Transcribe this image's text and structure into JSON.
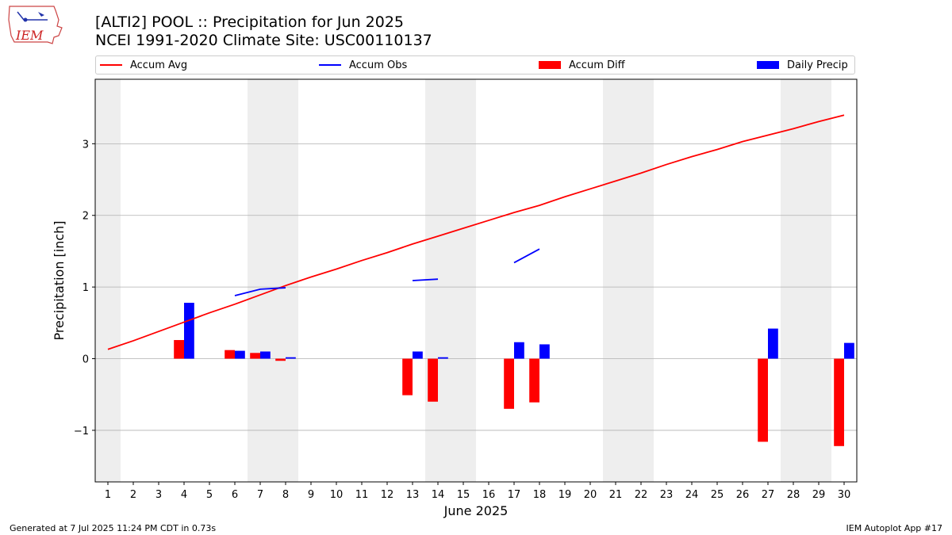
{
  "header": {
    "title_line1": "[ALTI2] POOL :: Precipitation for Jun 2025",
    "title_line2": "NCEI 1991-2020 Climate Site: USC00110137",
    "logo_text": "IEM"
  },
  "footer": {
    "left": "Generated at 7 Jul 2025 11:24 PM CDT in 0.73s",
    "right": "IEM Autoplot App #17"
  },
  "colors": {
    "avg": "#ff0000",
    "obs": "#0000ff",
    "diff": "#ff0000",
    "daily": "#0000ff",
    "weekend_shade": "#eeeeee",
    "grid": "#b0b0b0"
  },
  "chart_data": {
    "type": "bar",
    "title": "[ALTI2] POOL :: Precipitation for Jun 2025",
    "subtitle": "NCEI 1991-2020 Climate Site: USC00110137",
    "xlabel": "June 2025",
    "ylabel": "Precipitation [inch]",
    "x": [
      1,
      2,
      3,
      4,
      5,
      6,
      7,
      8,
      9,
      10,
      11,
      12,
      13,
      14,
      15,
      16,
      17,
      18,
      19,
      20,
      21,
      22,
      23,
      24,
      25,
      26,
      27,
      28,
      29,
      30
    ],
    "ylim": [
      -1.72,
      3.9
    ],
    "yticks": [
      -1,
      0,
      1,
      2,
      3
    ],
    "ytick_labels": [
      "−1",
      "0",
      "1",
      "2",
      "3"
    ],
    "grid": "horizontal",
    "legend_position": "top (above plot)",
    "weekend_shaded_days": [
      1,
      7,
      8,
      14,
      15,
      21,
      22,
      28,
      29
    ],
    "series": [
      {
        "name": "Accum Avg",
        "kind": "line",
        "values": [
          0.13,
          0.25,
          0.38,
          0.51,
          0.64,
          0.76,
          0.89,
          1.02,
          1.14,
          1.25,
          1.37,
          1.48,
          1.6,
          1.71,
          1.82,
          1.93,
          2.04,
          2.14,
          2.26,
          2.37,
          2.48,
          2.59,
          2.71,
          2.82,
          2.92,
          3.03,
          3.12,
          3.21,
          3.31,
          3.4
        ]
      },
      {
        "name": "Accum Obs",
        "kind": "line",
        "values": [
          null,
          null,
          null,
          null,
          null,
          0.88,
          0.97,
          0.99,
          null,
          null,
          null,
          null,
          1.09,
          1.11,
          null,
          null,
          1.34,
          1.53,
          null,
          null,
          null,
          null,
          null,
          null,
          null,
          null,
          null,
          null,
          null,
          null
        ]
      },
      {
        "name": "Accum Diff",
        "kind": "bar",
        "values": [
          null,
          null,
          null,
          0.26,
          null,
          0.12,
          0.08,
          -0.03,
          null,
          null,
          null,
          null,
          -0.51,
          -0.6,
          null,
          null,
          -0.7,
          -0.61,
          null,
          null,
          null,
          null,
          null,
          null,
          null,
          null,
          -1.16,
          null,
          null,
          -1.22
        ]
      },
      {
        "name": "Daily Precip",
        "kind": "bar",
        "values": [
          null,
          null,
          null,
          0.78,
          null,
          0.11,
          0.1,
          0.02,
          null,
          null,
          null,
          null,
          0.1,
          0.02,
          null,
          null,
          0.23,
          0.2,
          null,
          null,
          null,
          null,
          null,
          null,
          null,
          null,
          0.42,
          null,
          null,
          0.22
        ]
      }
    ]
  }
}
